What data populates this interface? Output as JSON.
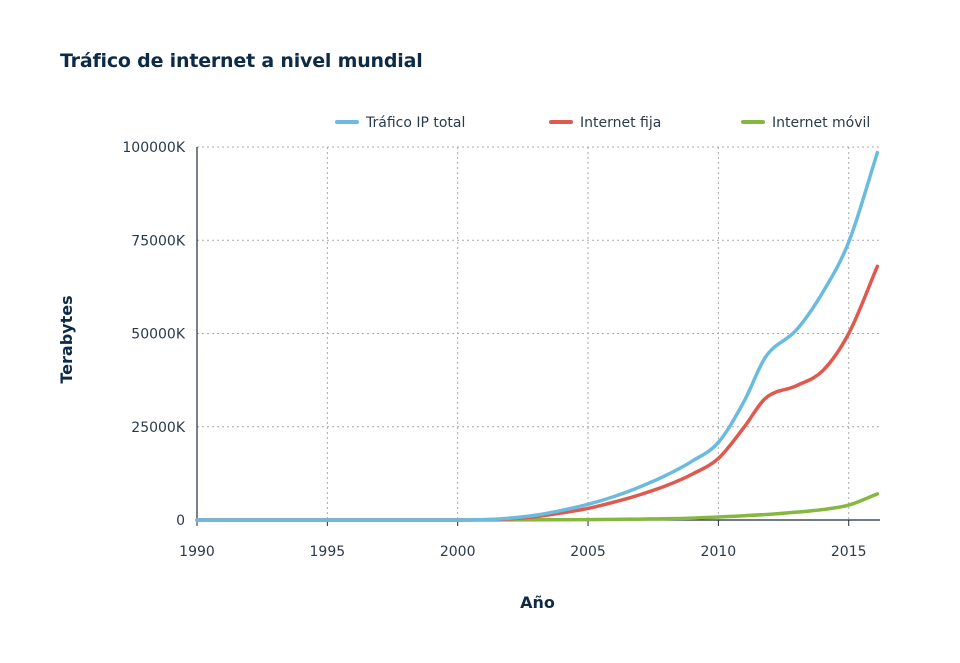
{
  "chart_data": {
    "type": "line",
    "title": "Tráfico de internet a nivel mundial",
    "xlabel": "Año",
    "ylabel": "Terabytes",
    "xlim": [
      1990,
      2016.2
    ],
    "ylim": [
      0,
      100000
    ],
    "x_ticks": [
      1990,
      1995,
      2000,
      2005,
      2010,
      2015
    ],
    "x_tick_labels": [
      "1990",
      "1995",
      "2000",
      "2005",
      "2010",
      "2015"
    ],
    "y_ticks": [
      0,
      25000,
      50000,
      75000,
      100000
    ],
    "y_tick_labels": [
      "0",
      "25000K",
      "50000K",
      "75000K",
      "100000K"
    ],
    "grid": true,
    "legend_position": "top-right",
    "series": [
      {
        "name": "Tráfico IP total",
        "color": "#6bbbe0",
        "x": [
          1990,
          1995,
          2000,
          2001,
          2002,
          2003,
          2004,
          2005,
          2006,
          2007,
          2008,
          2009,
          2010,
          2011,
          2011.8,
          2013,
          2014,
          2015,
          2016.1
        ],
        "y": [
          0,
          0,
          0,
          100,
          500,
          1300,
          2600,
          4200,
          6300,
          8900,
          12000,
          15800,
          20800,
          32000,
          43600,
          51000,
          61000,
          74500,
          98500
        ]
      },
      {
        "name": "Internet fija",
        "color": "#e0594e",
        "x": [
          1990,
          1995,
          2000,
          2001,
          2002,
          2003,
          2004,
          2005,
          2006,
          2007,
          2008,
          2009,
          2010,
          2011,
          2011.8,
          2013,
          2014,
          2015,
          2016.1
        ],
        "y": [
          0,
          0,
          0,
          50,
          300,
          900,
          1900,
          3100,
          4800,
          6800,
          9200,
          12300,
          16500,
          25000,
          32600,
          36000,
          40000,
          50000,
          68000
        ]
      },
      {
        "name": "Internet móvil",
        "color": "#86b840",
        "x": [
          1990,
          1995,
          2000,
          2005,
          2007,
          2009,
          2010,
          2011,
          2012,
          2013,
          2014,
          2015,
          2016.1
        ],
        "y": [
          0,
          0,
          0,
          100,
          250,
          500,
          800,
          1150,
          1550,
          2100,
          2800,
          4000,
          7000
        ]
      }
    ]
  }
}
